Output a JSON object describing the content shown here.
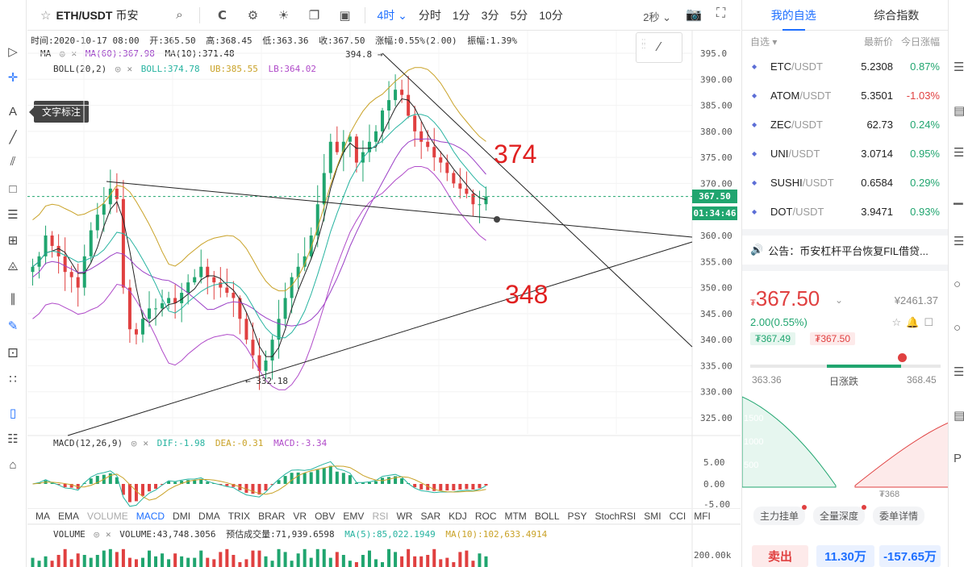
{
  "topbar": {
    "pair": "ETH/USDT",
    "exchange": "币安",
    "periods": [
      "4时",
      "分时",
      "1分",
      "3分",
      "5分",
      "10分"
    ],
    "active_period": "4时",
    "refresh": "2秒"
  },
  "info_line": {
    "time": "时间:2020-10-17 08:00",
    "open": "开:365.50",
    "high": "高:368.45",
    "low": "低:363.36",
    "close": "收:367.50",
    "change": "涨幅:0.55%(2.00)",
    "amplitude": "振幅:1.39%"
  },
  "indicators": {
    "ma_name": "MA",
    "ma60": "MA(60):367.98",
    "ma10": "MA(10):371.48",
    "boll_name": "BOLL(20,2)",
    "boll": "BOLL:374.78",
    "ub": "UB:385.55",
    "lb": "LB:364.02",
    "macd_name": "MACD(12,26,9)",
    "dif": "DIF:-1.98",
    "dea": "DEA:-0.31",
    "macd": "MACD:-3.34",
    "volume_name": "VOLUME",
    "volume": "VOLUME:43,748.3056",
    "est_volume": "预估成交量:71,939.6598",
    "vma5": "MA(5):85,022.1949",
    "vma10": "MA(10):102,633.4914"
  },
  "tooltip": "文字标注",
  "chart_data": {
    "type": "candlestick",
    "symbol": "ETH/USDT",
    "interval": "4h",
    "y_ticks": [
      "395.0",
      "390.00",
      "385.00",
      "380.00",
      "375.00",
      "370.00",
      "360.00",
      "355.00",
      "350.00",
      "345.00",
      "340.00",
      "335.00",
      "330.00",
      "325.00"
    ],
    "ylim": [
      322,
      397
    ],
    "last_price": "367.50",
    "countdown": "01:34:46",
    "high_marker": "394.8",
    "low_marker": "332.18",
    "annotations": [
      "374",
      "348"
    ],
    "macd_ticks": [
      "5.00",
      "0.00",
      "-5.00"
    ],
    "volume_ticks": [
      "200.00k"
    ],
    "closes": [
      354,
      356,
      360,
      358,
      356,
      353,
      352,
      350,
      356,
      361,
      364,
      366,
      369,
      367,
      350,
      342,
      341,
      344,
      346,
      346,
      347,
      348,
      347,
      349,
      351,
      352,
      354,
      352,
      351,
      350,
      349,
      348,
      344,
      340,
      337,
      334,
      336,
      340,
      344,
      348,
      352,
      354,
      356,
      360,
      366,
      372,
      378,
      376,
      378,
      379,
      374,
      376,
      378,
      380,
      384,
      386,
      388,
      387,
      383,
      380,
      378,
      377,
      375,
      374,
      372,
      370,
      369,
      368,
      366,
      366,
      367.5
    ]
  },
  "indicator_tabs": [
    "MA",
    "EMA",
    "VOLUME",
    "MACD",
    "DMI",
    "DMA",
    "TRIX",
    "BRAR",
    "VR",
    "OBV",
    "EMV",
    "RSI",
    "WR",
    "SAR",
    "KDJ",
    "ROC",
    "MTM",
    "BOLL",
    "PSY",
    "StochRSI",
    "SMI",
    "CCI",
    "MFI"
  ],
  "right": {
    "tabs": [
      "我的自选",
      "综合指数"
    ],
    "head": {
      "col1": "自选",
      "col2": "最新价",
      "col3": "今日涨幅"
    },
    "watchlist": [
      {
        "base": "ETC",
        "quote": "/USDT",
        "price": "5.2308",
        "change": "0.87%",
        "dir": "up"
      },
      {
        "base": "ATOM",
        "quote": "/USDT",
        "price": "5.3501",
        "change": "-1.03%",
        "dir": "down"
      },
      {
        "base": "ZEC",
        "quote": "/USDT",
        "price": "62.73",
        "change": "0.24%",
        "dir": "up"
      },
      {
        "base": "UNI",
        "quote": "/USDT",
        "price": "3.0714",
        "change": "0.95%",
        "dir": "up"
      },
      {
        "base": "SUSHI",
        "quote": "/USDT",
        "price": "0.6584",
        "change": "0.29%",
        "dir": "up"
      },
      {
        "base": "DOT",
        "quote": "/USDT",
        "price": "3.9471",
        "change": "0.93%",
        "dir": "up"
      }
    ],
    "notice": "公告：币安杠杆平台恢复FIL借贷...",
    "price": "367.50",
    "currency_sign": "₮",
    "cny": "¥2461.37",
    "change": "2.00(0.55%)",
    "bid": "₮367.49",
    "ask": "₮367.50",
    "low": "363.36",
    "high": "368.45",
    "range_label": "日涨跌",
    "range_fraction": 0.79,
    "depth_ticks": [
      "1500",
      "1000",
      "500"
    ],
    "depth_price": "₮368",
    "depth_tabs": [
      "主力挂单",
      "全量深度",
      "委单详情"
    ],
    "sell": "卖出",
    "amount1": "11.30万",
    "amount2": "-157.65万"
  }
}
